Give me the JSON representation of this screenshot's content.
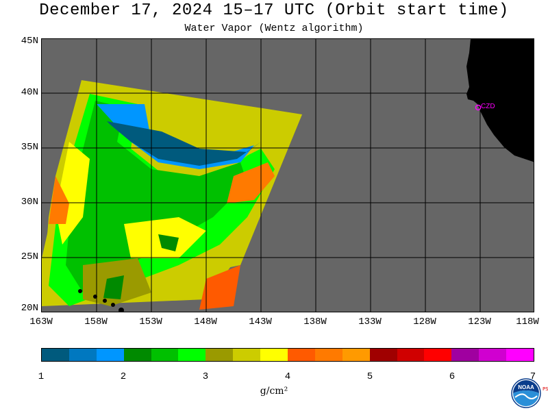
{
  "header": {
    "title": "December 17, 2024  15–17 UTC  (Orbit start time)",
    "subtitle": "Water Vapor (Wentz algorithm)"
  },
  "map": {
    "lat_labels": [
      "45N",
      "40N",
      "35N",
      "30N",
      "25N",
      "20N"
    ],
    "lon_labels": [
      "163W",
      "158W",
      "153W",
      "148W",
      "143W",
      "138W",
      "133W",
      "128W",
      "123W",
      "118W"
    ],
    "station_label": "CZD",
    "colors": {
      "no_data": "#666666",
      "land": "#000000",
      "station": "#ff00ff"
    }
  },
  "colorbar": {
    "colors": [
      "#005a7d",
      "#0078c0",
      "#0096ff",
      "#008a00",
      "#00c000",
      "#00ff00",
      "#9a9a00",
      "#cccc00",
      "#ffff00",
      "#ff5a00",
      "#ff7a00",
      "#ff9a00",
      "#a00000",
      "#d00000",
      "#ff0000",
      "#a000a0",
      "#d000d0",
      "#ff00ff"
    ],
    "ticks": [
      "1",
      "2",
      "3",
      "4",
      "5",
      "6",
      "7"
    ],
    "unit_label": "g/cm²"
  },
  "logo": {
    "text": "NOAA",
    "side_text": "PSL",
    "icon": "noaa-logo-icon"
  }
}
